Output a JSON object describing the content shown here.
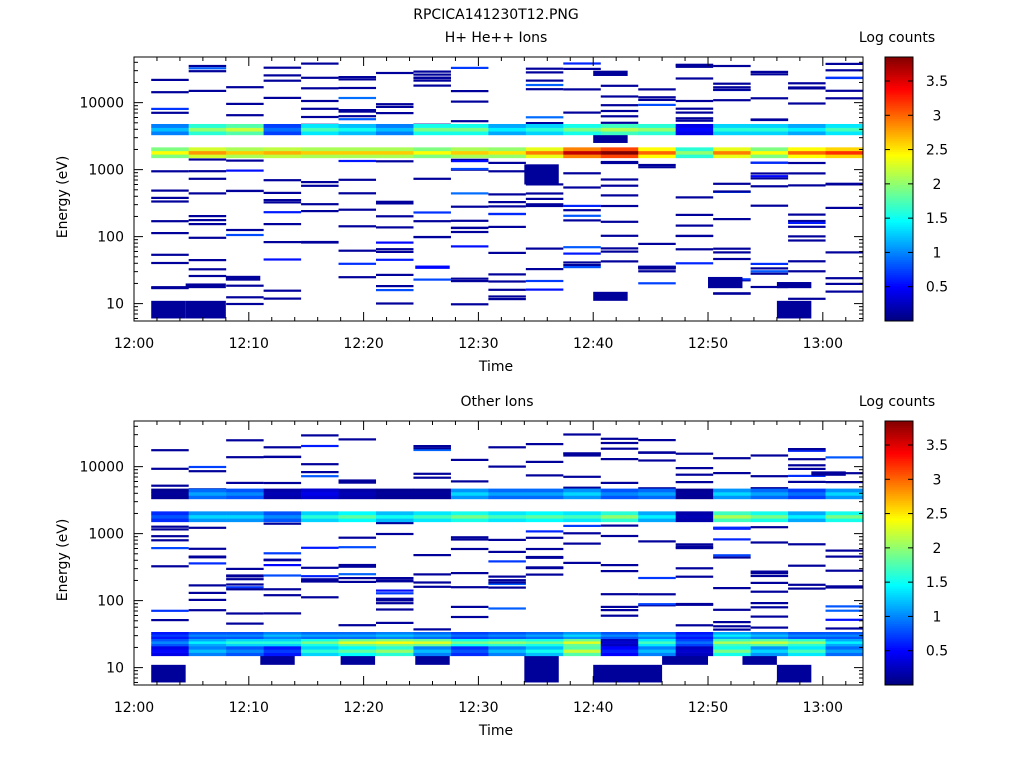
{
  "figure_title": "RPCICA141230T12.PNG",
  "chart_data": [
    {
      "type": "heatmap",
      "title": "H+ He++ Ions",
      "xlabel": "Time",
      "ylabel": "Energy (eV)",
      "colorbar_label": "Log counts",
      "colorbar_range": [
        0,
        3.85
      ],
      "colorbar_ticks": [
        "0.5",
        "1",
        "1.5",
        "2",
        "2.5",
        "3",
        "3.5"
      ],
      "colormap": "jet",
      "x_ticks": [
        "12:00",
        "12:10",
        "12:20",
        "12:30",
        "12:40",
        "12:50",
        "13:00"
      ],
      "y_scale": "log",
      "y_range": [
        5.5,
        48000
      ],
      "y_ticks": [
        "10",
        "100",
        "1000",
        "10000"
      ],
      "time_range_min": [
        0,
        63.5
      ],
      "time_bins": 19,
      "bands": [
        {
          "e_lo": 1500,
          "e_hi": 2150,
          "values": [
            2.4,
            2.8,
            2.6,
            2.7,
            2.6,
            2.6,
            2.6,
            2.4,
            2.6,
            2.5,
            2.9,
            3.6,
            3.9,
            3.0,
            2.0,
            2.9,
            2.4,
            3.0,
            3.2
          ]
        },
        {
          "e_lo": 3300,
          "e_hi": 4800,
          "values": [
            1.2,
            2.0,
            2.2,
            0.9,
            1.7,
            1.5,
            1.2,
            1.9,
            1.9,
            1.4,
            1.6,
            1.9,
            2.1,
            2.0,
            0.5,
            1.6,
            1.6,
            1.4,
            1.7
          ]
        }
      ],
      "scatter_cells": [
        {
          "t_start": 1.5,
          "t_end": 4.5,
          "e_lo": 6,
          "e_hi": 11,
          "value": 0.1
        },
        {
          "t_start": 4.5,
          "t_end": 8,
          "e_lo": 6,
          "e_hi": 11,
          "value": 0.1
        },
        {
          "t_start": 56,
          "t_end": 59,
          "e_lo": 6,
          "e_hi": 11,
          "value": 0.1
        },
        {
          "t_start": 4.5,
          "t_end": 8,
          "e_lo": 17,
          "e_hi": 20,
          "value": 0.1
        },
        {
          "t_start": 8,
          "t_end": 11,
          "e_lo": 22,
          "e_hi": 26,
          "value": 0.1
        },
        {
          "t_start": 40,
          "t_end": 43,
          "e_lo": 11,
          "e_hi": 15,
          "value": 0.1
        },
        {
          "t_start": 50,
          "t_end": 53,
          "e_lo": 17,
          "e_hi": 25,
          "value": 0.1
        },
        {
          "t_start": 56,
          "t_end": 59,
          "e_lo": 17,
          "e_hi": 21,
          "value": 0.1
        },
        {
          "t_start": 24.5,
          "t_end": 27.5,
          "e_lo": 33,
          "e_hi": 37,
          "value": 0.5
        },
        {
          "t_start": 34,
          "t_end": 37,
          "e_lo": 600,
          "e_hi": 1200,
          "value": 0.1
        },
        {
          "t_start": 40,
          "t_end": 43,
          "e_lo": 2500,
          "e_hi": 3600,
          "value": 0.1
        },
        {
          "t_start": 40,
          "t_end": 43,
          "e_lo": 25000,
          "e_hi": 30000,
          "value": 0.1
        }
      ]
    },
    {
      "type": "heatmap",
      "title": "Other Ions",
      "xlabel": "Time",
      "ylabel": "Energy (eV)",
      "colorbar_label": "Log counts",
      "colorbar_range": [
        0,
        3.85
      ],
      "colorbar_ticks": [
        "0.5",
        "1",
        "1.5",
        "2",
        "2.5",
        "3",
        "3.5"
      ],
      "colormap": "jet",
      "x_ticks": [
        "12:00",
        "12:10",
        "12:20",
        "12:30",
        "12:40",
        "12:50",
        "13:00"
      ],
      "y_scale": "log",
      "y_range": [
        5.5,
        48000
      ],
      "y_ticks": [
        "10",
        "100",
        "1000",
        "10000"
      ],
      "time_range_min": [
        0,
        63.5
      ],
      "time_bins": 19,
      "bands": [
        {
          "e_lo": 15,
          "e_hi": 21,
          "values": [
            0.5,
            1.2,
            1.0,
            0.7,
            1.6,
            1.8,
            2.0,
            1.2,
            0.8,
            1.2,
            1.5,
            2.2,
            0.6,
            1.2,
            0.3,
            1.9,
            1.3,
            1.7,
            1.1
          ]
        },
        {
          "e_lo": 21,
          "e_hi": 27,
          "values": [
            1.0,
            1.4,
            1.6,
            1.6,
            1.9,
            2.3,
            2.4,
            2.3,
            1.9,
            2.0,
            1.9,
            2.3,
            0.3,
            1.7,
            0.9,
            2.1,
            2.2,
            2.0,
            1.4
          ]
        },
        {
          "e_lo": 27,
          "e_hi": 34,
          "values": [
            0.7,
            1.0,
            1.0,
            1.2,
            1.1,
            1.1,
            1.2,
            1.1,
            0.9,
            1.0,
            1.1,
            1.3,
            1.0,
            1.2,
            0.7,
            1.4,
            1.2,
            1.0,
            1.0
          ]
        },
        {
          "e_lo": 1500,
          "e_hi": 2150,
          "values": [
            0.8,
            1.3,
            1.3,
            1.0,
            1.6,
            1.8,
            1.5,
            1.7,
            1.9,
            1.7,
            1.8,
            1.7,
            2.0,
            1.4,
            0.2,
            2.1,
            1.9,
            1.4,
            1.9
          ]
        },
        {
          "e_lo": 3300,
          "e_hi": 4700,
          "values": [
            0.1,
            1.1,
            1.0,
            0.2,
            0.4,
            0.2,
            0.1,
            0.1,
            1.3,
            1.1,
            1.1,
            1.3,
            1.0,
            1.1,
            0.1,
            1.3,
            1.1,
            0.9,
            1.3
          ]
        }
      ],
      "scatter_cells": [
        {
          "t_start": 1.5,
          "t_end": 4.5,
          "e_lo": 6,
          "e_hi": 11,
          "value": 0.1
        },
        {
          "t_start": 11,
          "t_end": 14,
          "e_lo": 11,
          "e_hi": 15,
          "value": 0.1
        },
        {
          "t_start": 18,
          "t_end": 21,
          "e_lo": 11,
          "e_hi": 15,
          "value": 0.1
        },
        {
          "t_start": 24.5,
          "t_end": 27.5,
          "e_lo": 11,
          "e_hi": 15,
          "value": 0.1
        },
        {
          "t_start": 34,
          "t_end": 37,
          "e_lo": 6,
          "e_hi": 15,
          "value": 0.1
        },
        {
          "t_start": 40,
          "t_end": 46,
          "e_lo": 6,
          "e_hi": 11,
          "value": 0.1
        },
        {
          "t_start": 46,
          "t_end": 50,
          "e_lo": 11,
          "e_hi": 15,
          "value": 0.1
        },
        {
          "t_start": 53,
          "t_end": 56,
          "e_lo": 11,
          "e_hi": 15,
          "value": 0.1
        },
        {
          "t_start": 56,
          "t_end": 59,
          "e_lo": 6,
          "e_hi": 11,
          "value": 0.1
        },
        {
          "t_start": 47,
          "t_end": 50,
          "e_lo": 1700,
          "e_hi": 2100,
          "value": 0.1
        },
        {
          "t_start": 59,
          "t_end": 62,
          "e_lo": 7300,
          "e_hi": 8500,
          "value": 0.1
        }
      ]
    }
  ]
}
